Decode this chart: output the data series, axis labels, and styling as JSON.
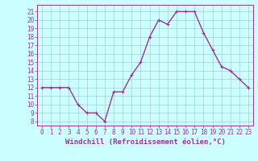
{
  "x": [
    0,
    1,
    2,
    3,
    4,
    5,
    6,
    7,
    8,
    9,
    10,
    11,
    12,
    13,
    14,
    15,
    16,
    17,
    18,
    19,
    20,
    21,
    22,
    23
  ],
  "y": [
    12,
    12,
    12,
    12,
    10,
    9,
    9,
    8,
    11.5,
    11.5,
    13.5,
    15,
    18,
    20,
    19.5,
    21,
    21,
    21,
    18.5,
    16.5,
    14.5,
    14,
    13,
    12
  ],
  "line_color": "#993399",
  "marker": "+",
  "bg_color": "#ccffff",
  "grid_color": "#aacccc",
  "axis_color": "#993399",
  "tick_color": "#993399",
  "xlabel": "Windchill (Refroidissement éolien,°C)",
  "xlabel_fontsize": 6.5,
  "ylabel_ticks": [
    8,
    9,
    10,
    11,
    12,
    13,
    14,
    15,
    16,
    17,
    18,
    19,
    20,
    21
  ],
  "xlim": [
    -0.5,
    23.5
  ],
  "ylim": [
    7.5,
    21.8
  ],
  "xtick_labels": [
    "0",
    "1",
    "2",
    "3",
    "4",
    "5",
    "6",
    "7",
    "8",
    "9",
    "10",
    "11",
    "12",
    "13",
    "14",
    "15",
    "16",
    "17",
    "18",
    "19",
    "20",
    "21",
    "22",
    "23"
  ],
  "tick_fontsize": 5.5,
  "linewidth": 1.0,
  "markersize": 3.5
}
